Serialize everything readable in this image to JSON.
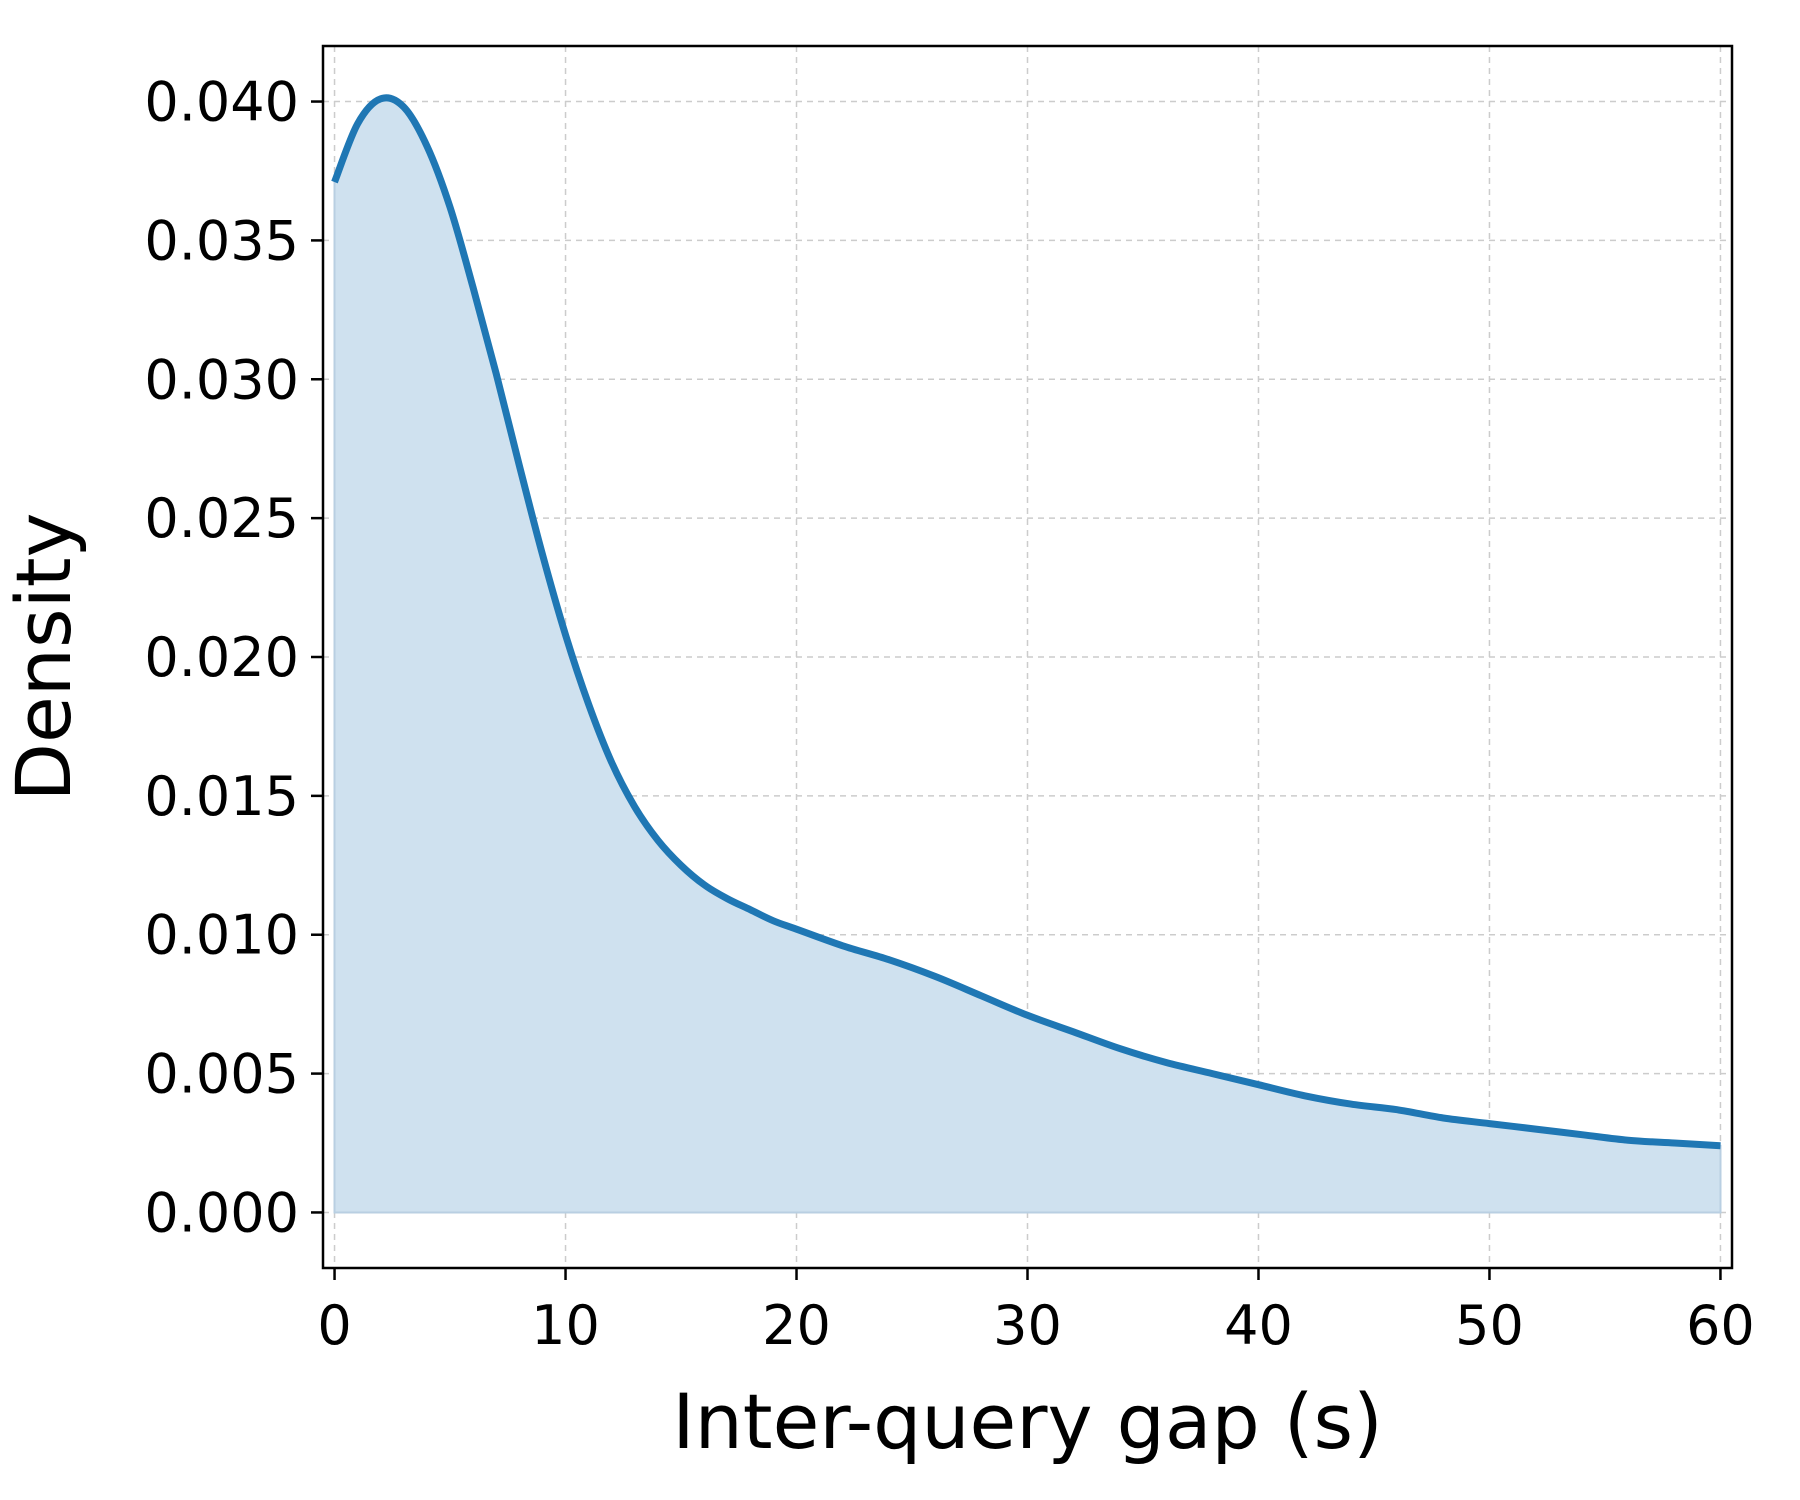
{
  "chart_data": {
    "type": "area",
    "xlabel": "Inter-query gap (s)",
    "ylabel": "Density",
    "xlim": [
      -0.5,
      60.5
    ],
    "ylim": [
      -0.002,
      0.042
    ],
    "xticks": [
      0,
      10,
      20,
      30,
      40,
      50,
      60
    ],
    "xtick_labels": [
      "0",
      "10",
      "20",
      "30",
      "40",
      "50",
      "60"
    ],
    "yticks": [
      0.0,
      0.005,
      0.01,
      0.015,
      0.02,
      0.025,
      0.03,
      0.035,
      0.04
    ],
    "ytick_labels": [
      "0.000",
      "0.005",
      "0.010",
      "0.015",
      "0.020",
      "0.025",
      "0.030",
      "0.035",
      "0.040"
    ],
    "grid": true,
    "line_color": "#1f77b4",
    "fill_color": "#cfe1ef",
    "x": [
      0,
      1,
      2,
      3,
      4,
      5,
      6,
      7,
      8,
      9,
      10,
      11,
      12,
      13,
      14,
      15,
      16,
      17,
      18,
      19,
      20,
      22,
      24,
      26,
      28,
      30,
      32,
      34,
      36,
      38,
      40,
      42,
      44,
      46,
      48,
      50,
      52,
      54,
      56,
      58,
      60
    ],
    "y": [
      0.0371,
      0.0392,
      0.0401,
      0.0398,
      0.0384,
      0.0362,
      0.0333,
      0.0302,
      0.0269,
      0.0237,
      0.0208,
      0.0183,
      0.0162,
      0.0146,
      0.0134,
      0.0125,
      0.0118,
      0.0113,
      0.0109,
      0.0105,
      0.0102,
      0.0096,
      0.0091,
      0.0085,
      0.0078,
      0.0071,
      0.0065,
      0.0059,
      0.0054,
      0.005,
      0.0046,
      0.0042,
      0.0039,
      0.0037,
      0.0034,
      0.0032,
      0.003,
      0.0028,
      0.0026,
      0.0025,
      0.0024
    ]
  }
}
